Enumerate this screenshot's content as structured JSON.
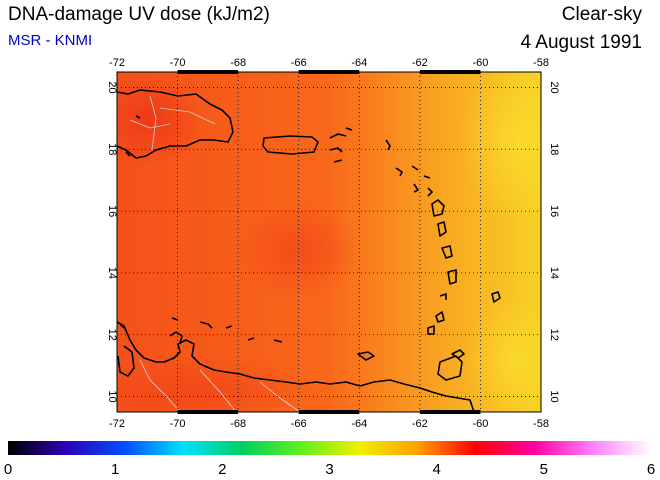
{
  "header": {
    "title": "DNA-damage UV dose (kJ/m2)",
    "credit": "MSR - KNMI",
    "condition": "Clear-sky",
    "date": "4 August 1991"
  },
  "map": {
    "lon_range": [
      -72,
      -58
    ],
    "lat_range": [
      9.5,
      20.5
    ],
    "lon_ticks": [
      -72,
      -70,
      -68,
      -66,
      -64,
      -62,
      -60,
      -58
    ],
    "lat_ticks": [
      10,
      12,
      14,
      16,
      18,
      20
    ],
    "lon_tick_labels": [
      "-72",
      "-70",
      "-68",
      "-66",
      "-64",
      "-62",
      "-60",
      "-58"
    ],
    "lat_tick_labels": [
      "10",
      "12",
      "14",
      "16",
      "18",
      "20"
    ],
    "grid": "dotted",
    "field_colors": {
      "east": "#f7d224",
      "center": "#f9681a",
      "west": "#f4501a",
      "hot": "#ee3418"
    }
  },
  "colorbar": {
    "min": 0,
    "max": 6,
    "tick_labels": [
      "0",
      "1",
      "2",
      "3",
      "4",
      "5",
      "6"
    ],
    "stops": [
      "#000000",
      "#2d00b8",
      "#0050ff",
      "#00e0ff",
      "#00d060",
      "#60f020",
      "#f0f000",
      "#ffa000",
      "#ff0000",
      "#ff00a0",
      "#ff80ff",
      "#ffffff"
    ]
  }
}
